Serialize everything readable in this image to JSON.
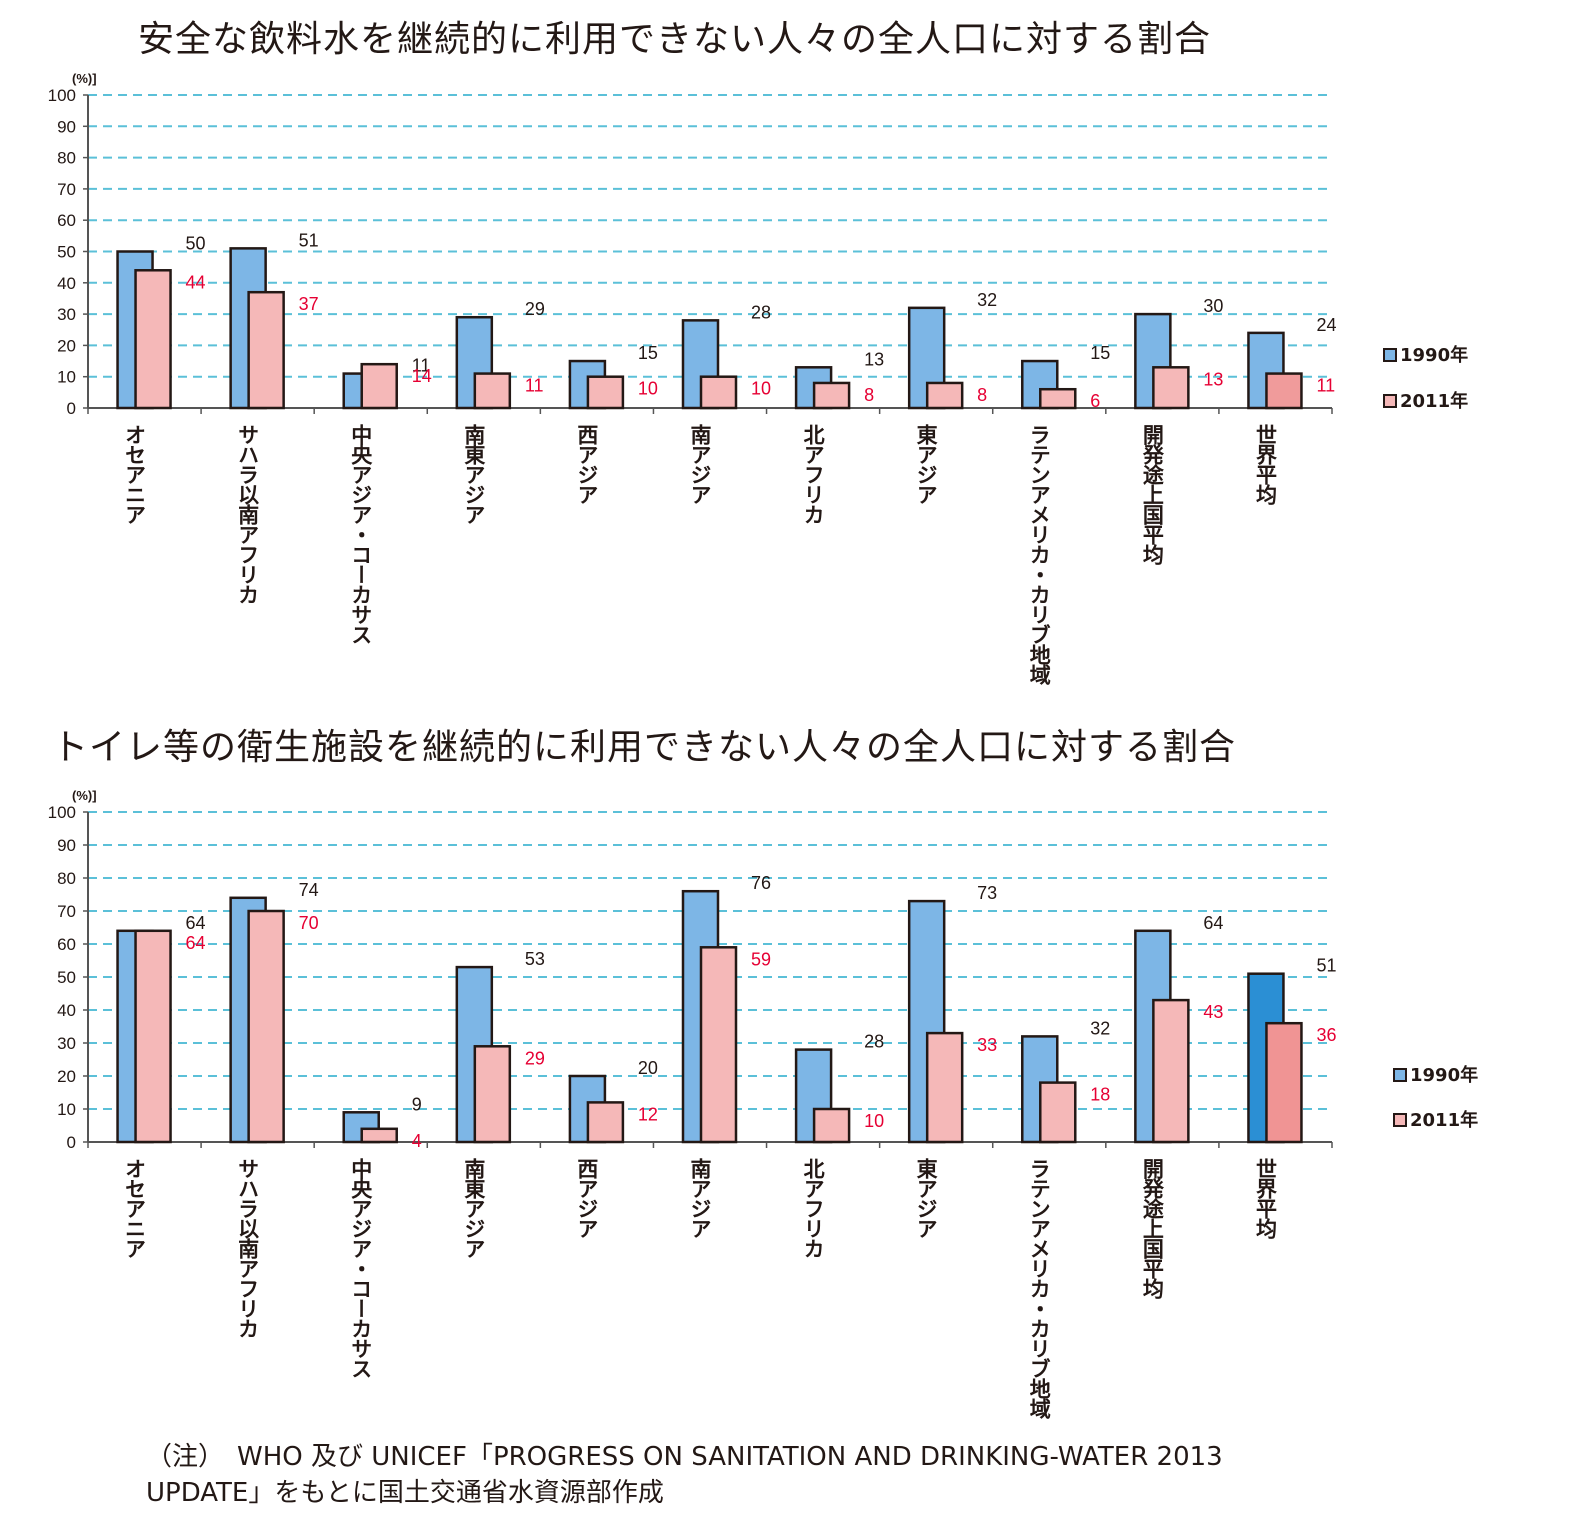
{
  "chart_data": [
    {
      "type": "bar",
      "title": "安全な飲料水を継続的に利用できない人々の全人口に対する割合",
      "unit": "(%)]",
      "ylim": [
        0,
        100
      ],
      "yticks": [
        "0",
        "10",
        "20",
        "30",
        "40",
        "50",
        "60",
        "70",
        "80",
        "90",
        "100"
      ],
      "grid": true,
      "legend_position": "right",
      "categories": [
        "オセアニア",
        "サハラ以南アフリカ",
        "中央アジア・コーカサス",
        "南東アジア",
        "西アジア",
        "南アジア",
        "北アフリカ",
        "東アジア",
        "ラテンアメリカ・カリブ地域",
        "開発途上国平均",
        "世界平均"
      ],
      "series": [
        {
          "name": "1990年",
          "color": "#7db6e6",
          "values": [
            50,
            51,
            11,
            29,
            15,
            28,
            13,
            32,
            15,
            30,
            24
          ]
        },
        {
          "name": "2011年",
          "color": "#f5b8b8",
          "values": [
            44,
            37,
            14,
            11,
            10,
            10,
            8,
            8,
            6,
            13,
            11
          ]
        }
      ],
      "highlight_last_colors": [
        "#7db6e6",
        "#f09b9b"
      ],
      "value_label_colors": [
        "#231815",
        "#e60033"
      ]
    },
    {
      "type": "bar",
      "title": "トイレ等の衛生施設を継続的に利用できない人々の全人口に対する割合",
      "unit": "(%)]",
      "ylim": [
        0,
        100
      ],
      "yticks": [
        "0",
        "10",
        "20",
        "30",
        "40",
        "50",
        "60",
        "70",
        "80",
        "90",
        "100"
      ],
      "grid": true,
      "legend_position": "right",
      "categories": [
        "オセアニア",
        "サハラ以南アフリカ",
        "中央アジア・コーカサス",
        "南東アジア",
        "西アジア",
        "南アジア",
        "北アフリカ",
        "東アジア",
        "ラテンアメリカ・カリブ地域",
        "開発途上国平均",
        "世界平均"
      ],
      "series": [
        {
          "name": "1990年",
          "color": "#7db6e6",
          "values": [
            64,
            74,
            9,
            53,
            20,
            76,
            28,
            73,
            32,
            64,
            51
          ]
        },
        {
          "name": "2011年",
          "color": "#f5b8b8",
          "values": [
            64,
            70,
            4,
            29,
            12,
            59,
            10,
            33,
            18,
            43,
            36
          ]
        }
      ],
      "highlight_last_colors": [
        "#2b8fd4",
        "#f09494"
      ],
      "value_label_colors": [
        "#231815",
        "#e60033"
      ]
    }
  ],
  "notes": [
    "（注）　WHO 及び UNICEF「PROGRESS ON SANITATION AND DRINKING-WATER 2013",
    "UPDATE」をもとに国土交通省水資源部作成"
  ]
}
